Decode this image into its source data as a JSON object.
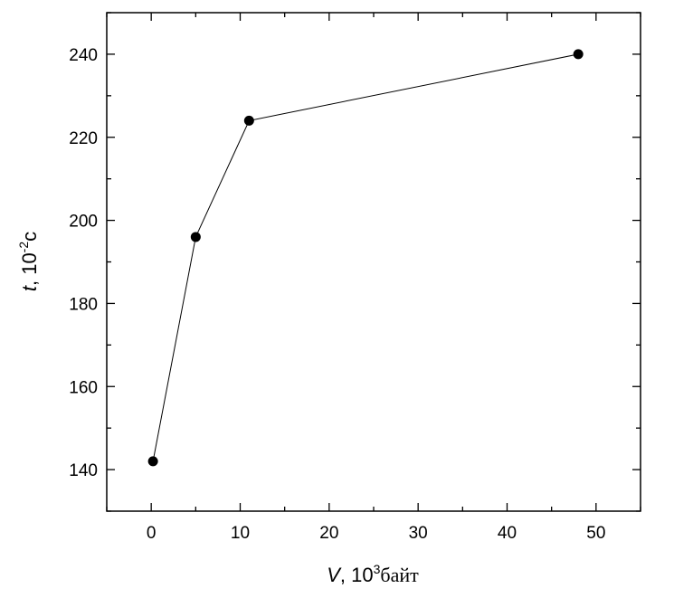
{
  "chart_data": {
    "type": "line",
    "x": [
      0.2,
      5,
      11,
      48
    ],
    "y": [
      142,
      196,
      224,
      240
    ],
    "xlim": [
      -5,
      55
    ],
    "ylim": [
      130,
      250
    ],
    "x_ticks": [
      0,
      10,
      20,
      30,
      40,
      50
    ],
    "y_ticks": [
      140,
      160,
      180,
      200,
      220,
      240
    ],
    "xlabel": {
      "var": "V",
      "sep": ", ",
      "base": "10",
      "exp": "3",
      "unit": "байт"
    },
    "ylabel": {
      "var": "t",
      "sep": ", ",
      "base": "10",
      "exp": "-2",
      "unit": "c"
    },
    "grid": false,
    "legend": "none",
    "marker": "filled-circle",
    "color": "#000000"
  }
}
